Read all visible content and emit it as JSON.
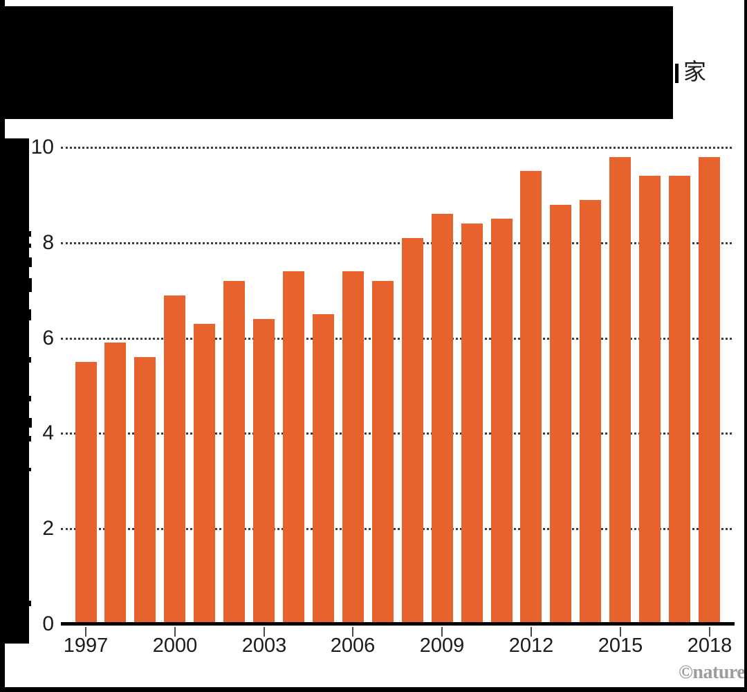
{
  "page": {
    "title_visible_fragment": "家",
    "title_redacted": true,
    "y_axis_label_redacted": true,
    "watermark": "©nature"
  },
  "chart_data": {
    "type": "bar",
    "title": "",
    "categories": [
      1997,
      1998,
      1999,
      2000,
      2001,
      2002,
      2003,
      2004,
      2005,
      2006,
      2007,
      2008,
      2009,
      2010,
      2011,
      2012,
      2013,
      2014,
      2015,
      2016,
      2017,
      2018
    ],
    "values": [
      5.5,
      5.9,
      5.6,
      6.9,
      6.3,
      7.2,
      6.4,
      7.4,
      6.5,
      7.4,
      7.2,
      8.1,
      8.6,
      8.4,
      8.5,
      9.5,
      8.8,
      8.9,
      9.8,
      9.4,
      9.4,
      9.8
    ],
    "xlabel": "",
    "ylabel": "",
    "ylim": [
      0,
      10
    ],
    "yticks": [
      0,
      2,
      4,
      6,
      8,
      10
    ],
    "x_tick_labels": [
      "1997",
      "2000",
      "2003",
      "2006",
      "2009",
      "2012",
      "2015",
      "2018"
    ],
    "grid": "horizontal-dotted",
    "legend": "none",
    "colors": {
      "bar": "#E8622D",
      "gridline": "#3c3c3c",
      "axis": "#000000",
      "tick_label": "#1b1b1b",
      "watermark": "#9c9c9c"
    }
  }
}
